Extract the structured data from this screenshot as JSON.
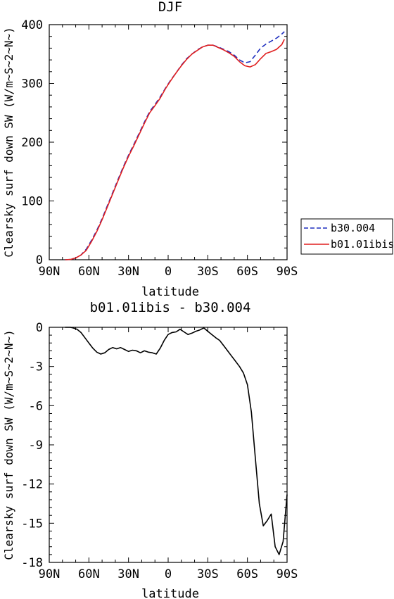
{
  "top_title": "DJF",
  "bottom_title": "b01.01ibis - b30.004",
  "legend": [
    {
      "label": "b30.004",
      "color": "#1f2fbf",
      "dash": "dashed"
    },
    {
      "label": "b01.01ibis",
      "color": "#e01f1f",
      "dash": "solid"
    }
  ],
  "chart_data": [
    {
      "type": "line",
      "title": "DJF",
      "xlabel": "latitude",
      "ylabel": "Clearsky surf down SW (W/m~S~2~N~)",
      "xlim": [
        -90,
        90
      ],
      "ylim": [
        0,
        400
      ],
      "x_ticks": [
        -90,
        -60,
        -30,
        0,
        30,
        60,
        90
      ],
      "x_tick_labels": [
        "90N",
        "60N",
        "30N",
        "0",
        "30S",
        "60S",
        "90S"
      ],
      "y_ticks": [
        0,
        100,
        200,
        300,
        400
      ],
      "y_tick_labels": [
        "0",
        "100",
        "200",
        "300",
        "400"
      ],
      "legend_position": "right",
      "x": [
        -78,
        -74,
        -70,
        -66,
        -62,
        -58,
        -54,
        -50,
        -46,
        -42,
        -38,
        -34,
        -30,
        -26,
        -22,
        -18,
        -14,
        -10,
        -6,
        -2,
        2,
        6,
        10,
        14,
        18,
        22,
        26,
        30,
        34,
        38,
        42,
        46,
        50,
        54,
        58,
        62,
        66,
        70,
        74,
        78,
        82,
        86,
        88
      ],
      "series": [
        {
          "name": "b30.004",
          "color": "#1f2fbf",
          "dash": "dashed",
          "values": [
            0,
            0.5,
            3,
            8,
            18,
            33,
            50,
            70,
            92,
            114,
            136,
            158,
            178,
            196,
            215,
            234,
            252,
            264,
            277,
            292,
            306,
            318,
            331,
            342,
            350,
            357,
            362,
            365,
            365,
            362,
            358,
            354,
            348,
            340,
            335,
            337,
            348,
            360,
            367,
            372,
            377,
            384,
            388
          ]
        },
        {
          "name": "b01.01ibis",
          "color": "#e01f1f",
          "dash": "solid",
          "values": [
            0,
            0.5,
            3,
            8,
            16,
            31,
            48,
            68,
            90,
            112,
            134,
            156,
            176,
            194,
            213,
            232,
            250,
            262,
            275,
            291,
            305,
            318,
            330,
            341,
            350,
            356,
            362,
            365,
            365,
            361,
            357,
            352,
            346,
            337,
            330,
            328,
            332,
            342,
            351,
            354,
            358,
            366,
            375
          ]
        }
      ]
    },
    {
      "type": "line",
      "title": "b01.01ibis - b30.004",
      "xlabel": "latitude",
      "ylabel": "Clearsky surf down SW (W/m~S~2~N~)",
      "xlim": [
        -90,
        90
      ],
      "ylim": [
        -18,
        0
      ],
      "x_ticks": [
        -90,
        -60,
        -30,
        0,
        30,
        60,
        90
      ],
      "x_tick_labels": [
        "90N",
        "60N",
        "30N",
        "0",
        "30S",
        "60S",
        "90S"
      ],
      "y_ticks": [
        0,
        -3,
        -6,
        -9,
        -12,
        -15,
        -18
      ],
      "y_tick_labels": [
        "0",
        "-3",
        "-6",
        "-9",
        "-12",
        "-15",
        "-18"
      ],
      "x": [
        -78,
        -74,
        -72,
        -69,
        -66,
        -63,
        -60,
        -57,
        -54,
        -51,
        -48,
        -45,
        -42,
        -39,
        -36,
        -33,
        -30,
        -27,
        -24,
        -21,
        -18,
        -15,
        -12,
        -9,
        -6,
        -3,
        0,
        3,
        6,
        9,
        12,
        15,
        18,
        21,
        24,
        27,
        30,
        33,
        36,
        39,
        42,
        45,
        48,
        51,
        54,
        57,
        60,
        63,
        66,
        69,
        72,
        75,
        78,
        81,
        84,
        87,
        90
      ],
      "series": [
        {
          "name": "",
          "color": "#000000",
          "dash": "solid",
          "values": [
            0,
            0,
            -0.05,
            -0.15,
            -0.4,
            -0.8,
            -1.2,
            -1.6,
            -1.9,
            -2.05,
            -1.95,
            -1.7,
            -1.55,
            -1.65,
            -1.55,
            -1.7,
            -1.85,
            -1.75,
            -1.8,
            -1.95,
            -1.8,
            -1.9,
            -1.95,
            -2.05,
            -1.6,
            -1.0,
            -0.55,
            -0.4,
            -0.35,
            -0.15,
            -0.35,
            -0.55,
            -0.45,
            -0.3,
            -0.2,
            -0.05,
            -0.3,
            -0.55,
            -0.8,
            -1.0,
            -1.4,
            -1.8,
            -2.2,
            -2.6,
            -3.0,
            -3.5,
            -4.4,
            -6.5,
            -10.0,
            -13.5,
            -15.2,
            -14.8,
            -14.3,
            -16.8,
            -17.4,
            -16.4,
            -12.8
          ]
        }
      ]
    }
  ]
}
